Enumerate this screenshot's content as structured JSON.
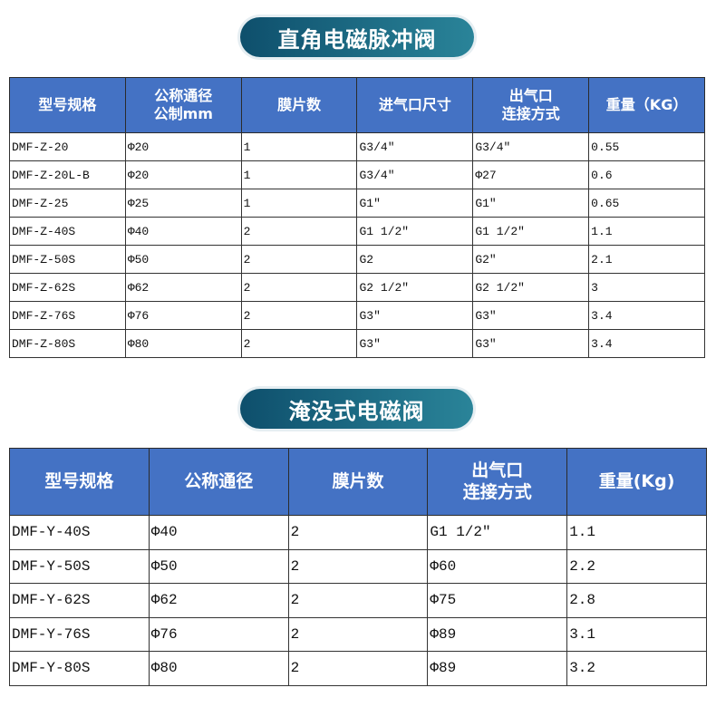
{
  "section1": {
    "title": "直角电磁脉冲阀",
    "headers": [
      "型号规格",
      "公称通径\n公制mm",
      "膜片数",
      "进气口尺寸",
      "出气口\n连接方式",
      "重量（KG）"
    ],
    "rows": [
      [
        "DMF-Z-20",
        "Φ20",
        "1",
        "G3/4″",
        "G3/4″",
        "0.55"
      ],
      [
        "DMF-Z-20L-B",
        "Φ20",
        "1",
        "G3/4″",
        "Φ27",
        "0.6"
      ],
      [
        "DMF-Z-25",
        "Φ25",
        "1",
        "G1″",
        "G1″",
        "0.65"
      ],
      [
        "DMF-Z-40S",
        "Φ40",
        "2",
        "G1 1/2″",
        "G1 1/2″",
        "1.1"
      ],
      [
        "DMF-Z-50S",
        "Φ50",
        "2",
        "G2",
        "G2″",
        "2.1"
      ],
      [
        "DMF-Z-62S",
        "Φ62",
        "2",
        "G2 1/2″",
        "G2 1/2″",
        "3"
      ],
      [
        "DMF-Z-76S",
        "Φ76",
        "2",
        "G3″",
        "G3″",
        "3.4"
      ],
      [
        "DMF-Z-80S",
        "Φ80",
        "2",
        "G3″",
        "G3″",
        "3.4"
      ]
    ]
  },
  "section2": {
    "title": "淹没式电磁阀",
    "headers": [
      "型号规格",
      "公称通径",
      "膜片数",
      "出气口\n连接方式",
      "重量(Kg)"
    ],
    "rows": [
      [
        "DMF-Y-40S",
        "Φ40",
        "2",
        "G1 1/2″",
        "1.1"
      ],
      [
        "DMF-Y-50S",
        "Φ50",
        "2",
        "Φ60",
        "2.2"
      ],
      [
        "DMF-Y-62S",
        "Φ62",
        "2",
        "Φ75",
        "2.8"
      ],
      [
        "DMF-Y-76S",
        "Φ76",
        "2",
        "Φ89",
        "3.1"
      ],
      [
        "DMF-Y-80S",
        "Φ80",
        "2",
        "Φ89",
        "3.2"
      ]
    ]
  },
  "colors": {
    "header_bg": "#4472c4",
    "pill_start": "#0e4f6c",
    "pill_end": "#2a8499"
  }
}
